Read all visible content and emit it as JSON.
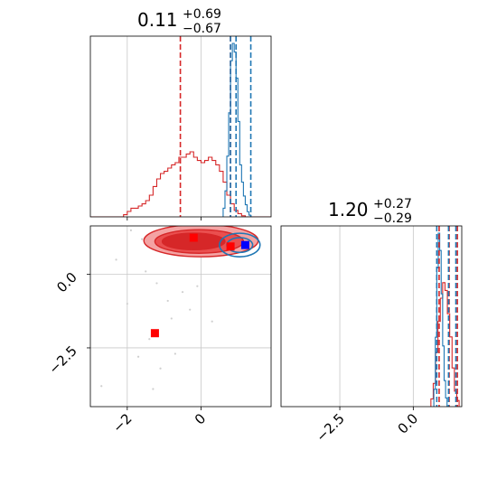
{
  "chart_data": {
    "type": "corner",
    "series_colors": {
      "posterior_a": "#d62728",
      "posterior_b": "#1f77b4",
      "marker_a": "#ff0000",
      "marker_b": "#0000ff"
    },
    "parameter_1": {
      "title": {
        "value": "0.11",
        "plus": "+0.69",
        "minus": "−0.67"
      },
      "xlim": [
        -3.0,
        1.9
      ],
      "ticks": [
        {
          "value": -2,
          "label": "−2"
        },
        {
          "value": 0,
          "label": "0"
        }
      ],
      "grid": true,
      "hist_red": {
        "edges_start": -3.0,
        "bin_width": 0.1,
        "counts": [
          0,
          0,
          0,
          0,
          0,
          0,
          0,
          0,
          0,
          0.02,
          0.05,
          0.08,
          0.08,
          0.1,
          0.12,
          0.15,
          0.2,
          0.28,
          0.35,
          0.4,
          0.42,
          0.45,
          0.48,
          0.5,
          0.55,
          0.55,
          0.58,
          0.6,
          0.55,
          0.52,
          0.5,
          0.52,
          0.55,
          0.52,
          0.48,
          0.42,
          0.32,
          0.2,
          0.12,
          0.06,
          0.03,
          0.01,
          0,
          0,
          0,
          0,
          0,
          0,
          0
        ]
      },
      "hist_blue": {
        "edges_start": 0.6,
        "bin_width": 0.05,
        "counts": [
          0.05,
          0.15,
          0.35,
          0.6,
          0.9,
          1.0,
          0.95,
          0.8,
          0.55,
          0.3,
          0.2,
          0.12,
          0.07,
          0.03,
          0.01
        ]
      },
      "quantiles_red": [
        -0.56,
        0.8
      ],
      "quantiles_blue": [
        0.8,
        0.95,
        1.35
      ]
    },
    "parameter_2": {
      "title": {
        "value": "1.20",
        "plus": "+0.27",
        "minus": "−0.29"
      },
      "xlim": [
        -4.5,
        1.65
      ],
      "ticks": [
        {
          "value": -2.5,
          "label": "−2.5"
        },
        {
          "value": 0,
          "label": "0.0"
        }
      ],
      "grid": true,
      "hist_red": {
        "edges_start": 0.6,
        "bin_width": 0.08,
        "counts": [
          0.05,
          0.15,
          0.35,
          0.55,
          0.7,
          0.8,
          0.75,
          0.6,
          0.45,
          0.25,
          0.1,
          0.04
        ]
      },
      "hist_blue": {
        "edges_start": 0.7,
        "bin_width": 0.05,
        "counts": [
          0.1,
          0.4,
          0.8,
          1.0,
          0.9,
          0.65,
          0.35,
          0.15,
          0.05
        ]
      },
      "quantiles_red": [
        0.88,
        1.22,
        1.5
      ],
      "quantiles_blue": [
        0.8,
        1.2,
        1.45
      ]
    },
    "joint": {
      "xlim": [
        -3.0,
        1.9
      ],
      "ylim": [
        -4.5,
        1.65
      ],
      "yticks": [
        {
          "value": 0,
          "label": "0.0"
        },
        {
          "value": -2.5,
          "label": "−2.5"
        }
      ],
      "grid": true,
      "contours_red": [
        {
          "cx": 0.0,
          "cy": 1.15,
          "rx": 1.55,
          "ry": 0.55,
          "fill": "#f4a3a3"
        },
        {
          "cx": -0.05,
          "cy": 1.12,
          "rx": 1.2,
          "ry": 0.4,
          "fill": "#ea4f4f"
        },
        {
          "cx": -0.2,
          "cy": 1.12,
          "rx": 0.85,
          "ry": 0.28,
          "fill": "#d62728"
        }
      ],
      "contours_blue": [
        {
          "cx": 1.05,
          "cy": 1.0,
          "rx": 0.55,
          "ry": 0.4
        },
        {
          "cx": 1.05,
          "cy": 1.0,
          "rx": 0.35,
          "ry": 0.25
        }
      ],
      "samples": [
        {
          "x": -1.5,
          "y": 0.1
        },
        {
          "x": -1.2,
          "y": -0.3
        },
        {
          "x": -0.8,
          "y": -1.5
        },
        {
          "x": -1.7,
          "y": -2.8
        },
        {
          "x": -2.0,
          "y": -1.0
        },
        {
          "x": -1.1,
          "y": -3.2
        },
        {
          "x": -0.5,
          "y": -0.6
        },
        {
          "x": -2.7,
          "y": -3.8
        },
        {
          "x": -1.4,
          "y": -2.2
        },
        {
          "x": -0.9,
          "y": -0.9
        },
        {
          "x": -1.9,
          "y": 1.5
        },
        {
          "x": -1.6,
          "y": 1.2
        },
        {
          "x": 0.3,
          "y": -1.6
        },
        {
          "x": -0.3,
          "y": -1.2
        },
        {
          "x": -1.3,
          "y": -3.9
        },
        {
          "x": -0.7,
          "y": -2.7
        },
        {
          "x": -2.3,
          "y": 0.5
        },
        {
          "x": -0.1,
          "y": -0.4
        }
      ],
      "markers": [
        {
          "x": -0.2,
          "y": 1.25,
          "color": "#ff0000"
        },
        {
          "x": 0.8,
          "y": 0.95,
          "color": "#ff0000"
        },
        {
          "x": -1.25,
          "y": -2.0,
          "color": "#ff0000"
        },
        {
          "x": 1.2,
          "y": 1.0,
          "color": "#0000ff"
        }
      ]
    }
  }
}
